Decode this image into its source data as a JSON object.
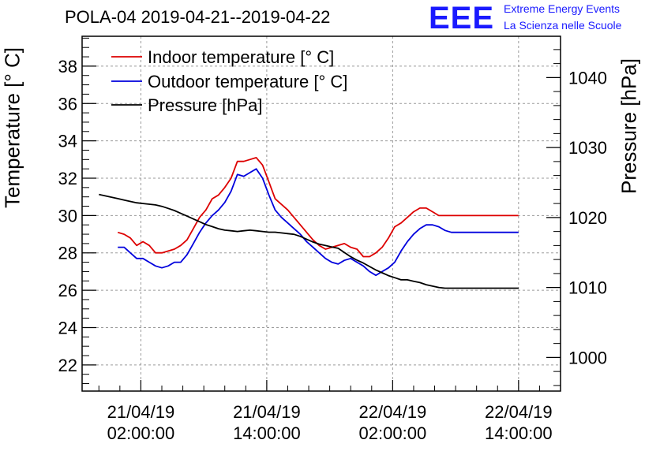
{
  "header": {
    "title": "POLA-04 2019-04-21--2019-04-22",
    "logo_text": "EEE",
    "logo_line1": "Extreme Energy Events",
    "logo_line2": "La Scienza nelle Scuole"
  },
  "colors": {
    "indoor": "#dd0000",
    "outdoor": "#0000dd",
    "pressure": "#000000",
    "logo": "#1a1aff",
    "grid": "#9a9a9a"
  },
  "chart_data": {
    "type": "line",
    "x_axis": {
      "ticks": [
        {
          "h": 2,
          "line1": "21/04/19",
          "line2": "02:00:00"
        },
        {
          "h": 14,
          "line1": "21/04/19",
          "line2": "14:00:00"
        },
        {
          "h": 26,
          "line1": "22/04/19",
          "line2": "02:00:00"
        },
        {
          "h": 38,
          "line1": "22/04/19",
          "line2": "14:00:00"
        }
      ],
      "range_hours_since_2019-04-21_00:00": [
        -3.6,
        42
      ]
    },
    "y_left": {
      "label": "Temperature [° C]",
      "range": [
        20.6,
        39.6
      ],
      "ticks": [
        22,
        24,
        26,
        28,
        30,
        32,
        34,
        36,
        38
      ]
    },
    "y_right": {
      "label": "Pressure [hPa]",
      "range": [
        995.2,
        1045.9
      ],
      "ticks": [
        1000,
        1010,
        1020,
        1030,
        1040
      ]
    },
    "grid": true,
    "legend": {
      "placement": "top-left",
      "entries": [
        {
          "label": "Indoor temperature [° C]",
          "series": "indoor"
        },
        {
          "label": "Outdoor temperature [° C]",
          "series": "outdoor"
        },
        {
          "label": "Pressure [hPa]",
          "series": "pressure"
        }
      ]
    },
    "series": [
      {
        "name": "Indoor temperature [° C]",
        "key": "indoor",
        "axis": "left",
        "x": [
          -0.2,
          0.4,
          1.0,
          1.6,
          2.2,
          2.8,
          3.4,
          4.0,
          4.6,
          5.2,
          5.8,
          6.4,
          7.0,
          7.6,
          8.2,
          8.8,
          9.4,
          10.0,
          10.6,
          11.2,
          11.8,
          12.4,
          13.0,
          13.6,
          14.2,
          14.8,
          15.4,
          16.0,
          16.6,
          17.2,
          17.8,
          18.4,
          19.0,
          19.6,
          20.2,
          20.8,
          21.4,
          22.0,
          22.6,
          23.2,
          23.8,
          24.4,
          25.0,
          25.6,
          26.2,
          26.8,
          27.4,
          28.0,
          28.6,
          29.2,
          29.8,
          30.4,
          31.0,
          31.6,
          32.2,
          32.8,
          33.4,
          34.0,
          34.6,
          35.2,
          35.8,
          36.4,
          37.0,
          37.6,
          38.0
        ],
        "y": [
          29.1,
          29.0,
          28.8,
          28.4,
          28.6,
          28.4,
          28.0,
          28.0,
          28.1,
          28.2,
          28.4,
          28.7,
          29.3,
          29.9,
          30.3,
          30.9,
          31.1,
          31.5,
          32.0,
          32.9,
          32.9,
          33.0,
          33.1,
          32.7,
          31.8,
          30.9,
          30.6,
          30.3,
          29.9,
          29.5,
          29.1,
          28.7,
          28.4,
          28.2,
          28.3,
          28.4,
          28.5,
          28.3,
          28.2,
          27.8,
          27.8,
          28.0,
          28.3,
          28.8,
          29.4,
          29.6,
          29.9,
          30.2,
          30.4,
          30.4,
          30.2,
          30.0,
          30.0,
          30.0,
          30.0,
          30.0,
          30.0,
          30.0,
          30.0,
          30.0,
          30.0,
          30.0,
          30.0,
          30.0,
          30.0
        ]
      },
      {
        "name": "Outdoor temperature [° C]",
        "key": "outdoor",
        "axis": "left",
        "x": [
          -0.2,
          0.4,
          1.0,
          1.6,
          2.2,
          2.8,
          3.4,
          4.0,
          4.6,
          5.2,
          5.8,
          6.4,
          7.0,
          7.6,
          8.2,
          8.8,
          9.4,
          10.0,
          10.6,
          11.2,
          11.8,
          12.4,
          13.0,
          13.6,
          14.2,
          14.8,
          15.4,
          16.0,
          16.6,
          17.2,
          17.8,
          18.4,
          19.0,
          19.6,
          20.2,
          20.8,
          21.4,
          22.0,
          22.6,
          23.2,
          23.8,
          24.4,
          25.0,
          25.6,
          26.2,
          26.8,
          27.4,
          28.0,
          28.6,
          29.2,
          29.8,
          30.4,
          31.0,
          31.6,
          32.2,
          32.8,
          33.4,
          34.0,
          34.6,
          35.2,
          35.8,
          36.4,
          37.0,
          37.6,
          38.0
        ],
        "y": [
          28.3,
          28.3,
          28.0,
          27.7,
          27.7,
          27.5,
          27.3,
          27.2,
          27.3,
          27.5,
          27.5,
          27.9,
          28.5,
          29.1,
          29.6,
          30.0,
          30.3,
          30.7,
          31.3,
          32.2,
          32.1,
          32.3,
          32.5,
          32.0,
          31.1,
          30.3,
          29.9,
          29.6,
          29.3,
          29.0,
          28.6,
          28.3,
          28.0,
          27.7,
          27.5,
          27.4,
          27.6,
          27.7,
          27.5,
          27.3,
          27.0,
          26.8,
          27.0,
          27.2,
          27.5,
          28.1,
          28.6,
          29.0,
          29.3,
          29.5,
          29.5,
          29.4,
          29.2,
          29.1,
          29.1,
          29.1,
          29.1,
          29.1,
          29.1,
          29.1,
          29.1,
          29.1,
          29.1,
          29.1,
          29.1
        ]
      },
      {
        "name": "Pressure [hPa]",
        "key": "pressure",
        "axis": "right",
        "x": [
          -2.0,
          -1.4,
          -0.8,
          -0.2,
          0.4,
          1.0,
          1.6,
          2.2,
          2.8,
          3.4,
          4.0,
          4.6,
          5.2,
          5.8,
          6.4,
          7.0,
          7.6,
          8.2,
          8.8,
          9.4,
          10.0,
          10.6,
          11.2,
          11.8,
          12.4,
          13.0,
          13.6,
          14.2,
          14.8,
          15.4,
          16.0,
          16.6,
          17.2,
          17.8,
          18.4,
          19.0,
          19.6,
          20.2,
          20.8,
          21.4,
          22.0,
          22.6,
          23.2,
          23.8,
          24.4,
          25.0,
          25.6,
          26.2,
          26.8,
          27.4,
          28.0,
          28.6,
          29.2,
          29.8,
          30.4,
          31.0,
          31.6,
          32.2,
          32.8,
          33.4,
          34.0,
          34.6,
          35.2,
          35.8,
          36.4,
          37.0,
          37.6,
          38.0
        ],
        "y": [
          1023.3,
          1023.1,
          1022.9,
          1022.7,
          1022.5,
          1022.3,
          1022.1,
          1022.0,
          1021.9,
          1021.8,
          1021.6,
          1021.3,
          1021.0,
          1020.6,
          1020.2,
          1019.8,
          1019.4,
          1019.0,
          1018.7,
          1018.4,
          1018.2,
          1018.1,
          1018.0,
          1018.1,
          1018.2,
          1018.1,
          1018.0,
          1017.9,
          1017.9,
          1017.8,
          1017.7,
          1017.6,
          1017.3,
          1016.9,
          1016.5,
          1016.2,
          1016.0,
          1015.8,
          1015.6,
          1015.0,
          1014.4,
          1013.9,
          1013.5,
          1013.0,
          1012.5,
          1012.1,
          1011.7,
          1011.4,
          1011.1,
          1011.1,
          1010.9,
          1010.7,
          1010.4,
          1010.2,
          1010.0,
          1009.9,
          1009.9,
          1009.9,
          1009.9,
          1009.9,
          1009.9,
          1009.9,
          1009.9,
          1009.9,
          1009.9,
          1009.9,
          1009.9,
          1009.9
        ]
      }
    ]
  }
}
